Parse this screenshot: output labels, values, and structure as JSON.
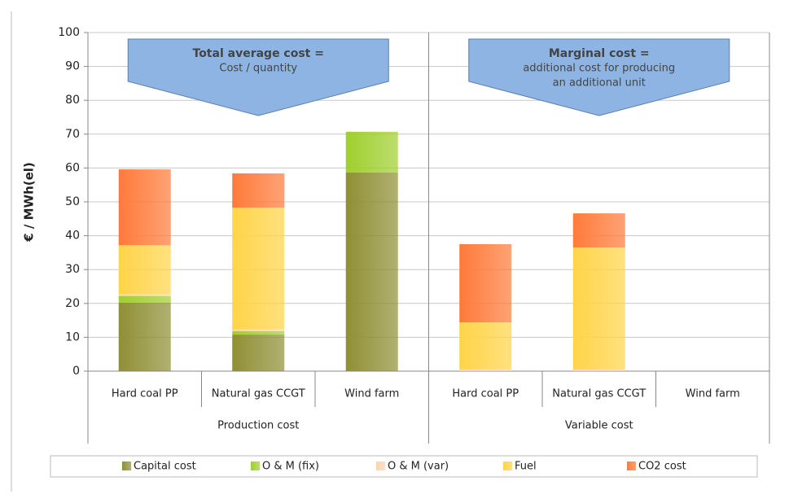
{
  "chart_data": {
    "type": "stacked_bar",
    "y_label": "€ / MWh(el)",
    "categories": [
      "Hard coal PP",
      "Natural gas CCGT",
      "Wind farm",
      "Hard coal PP",
      "Natural gas CCGT",
      "Wind farm"
    ],
    "groups": [
      {
        "name": "Production cost",
        "size": 3
      },
      {
        "name": "Variable cost",
        "size": 3
      }
    ],
    "series": [
      {
        "name": "Capital cost",
        "color": "#8f8f35",
        "values": [
          20.2,
          10.8,
          58.7,
          0,
          0,
          0
        ]
      },
      {
        "name": "O & M (fix)",
        "color": "#9fcf2f",
        "values": [
          2.0,
          1.0,
          12.0,
          0,
          0,
          0
        ]
      },
      {
        "name": "O & M (var)",
        "color": "#fbd3b0",
        "values": [
          0.6,
          0.5,
          0,
          0.6,
          0.5,
          0
        ]
      },
      {
        "name": "Fuel",
        "color": "#ffd448",
        "values": [
          14.4,
          36.0,
          0,
          13.8,
          36.0,
          0
        ]
      },
      {
        "name": "CO2 cost",
        "color": "#ff7a3a",
        "values": [
          22.4,
          10.1,
          0,
          23.1,
          10.1,
          0
        ]
      }
    ],
    "ylim": [
      0,
      100
    ],
    "yticks": [
      0,
      10,
      20,
      30,
      40,
      50,
      60,
      70,
      80,
      90,
      100
    ],
    "grid": true,
    "legend": "bottom",
    "annotations": [
      {
        "title": "Total average cost =",
        "lines": [
          "Cost / quantity"
        ]
      },
      {
        "title": "Marginal cost =",
        "lines": [
          "additional cost for producing",
          "an additional unit"
        ]
      }
    ]
  }
}
